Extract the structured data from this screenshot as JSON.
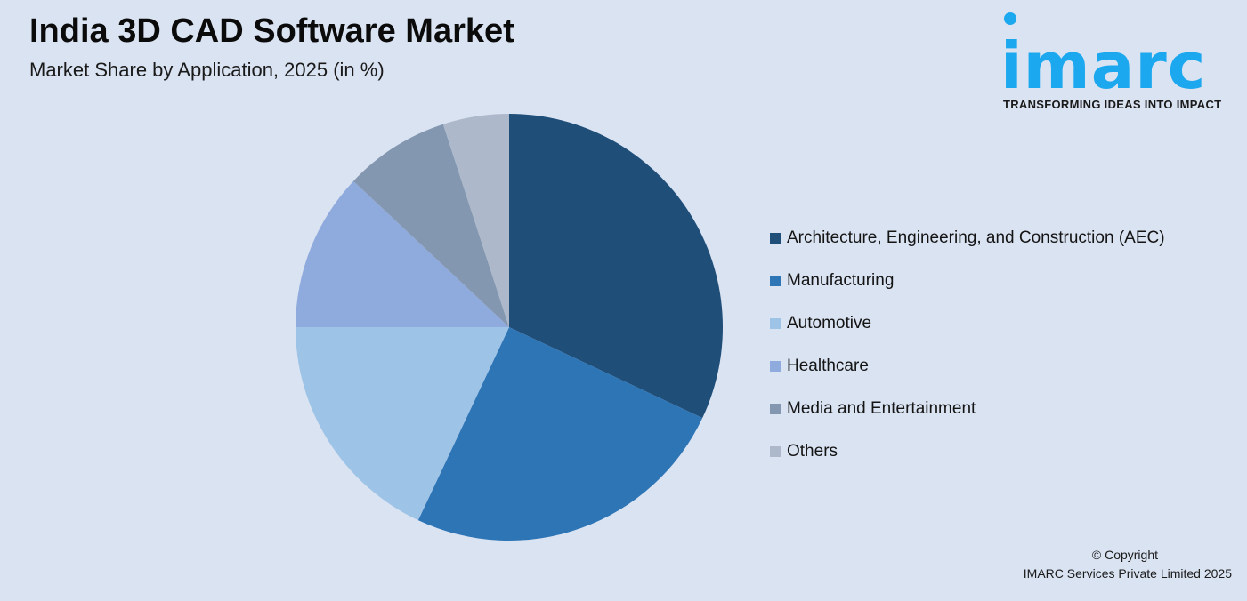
{
  "header": {
    "title": "India 3D CAD Software Market",
    "subtitle": "Market Share by Application, 2025 (in %)"
  },
  "logo": {
    "word": "imarc",
    "tagline": "TRANSFORMING IDEAS INTO IMPACT",
    "color": "#1ba8ef"
  },
  "legend": {
    "items": [
      {
        "label": "Architecture, Engineering, and Construction (AEC)",
        "color": "#1f4e79"
      },
      {
        "label": "Manufacturing",
        "color": "#2e75b6"
      },
      {
        "label": "Automotive",
        "color": "#9dc3e6"
      },
      {
        "label": "Healthcare",
        "color": "#8faadc"
      },
      {
        "label": "Media and Entertainment",
        "color": "#8497b0"
      },
      {
        "label": "Others",
        "color": "#adb9ca"
      }
    ]
  },
  "footer": {
    "copyright_line1": "© Copyright",
    "copyright_line2": "IMARC Services Private Limited 2025"
  },
  "chart_data": {
    "type": "pie",
    "title": "India 3D CAD Software Market",
    "subtitle": "Market Share by Application, 2025 (in %)",
    "categories": [
      "Architecture, Engineering, and Construction (AEC)",
      "Manufacturing",
      "Automotive",
      "Healthcare",
      "Media and Entertainment",
      "Others"
    ],
    "values": [
      32,
      25,
      18,
      12,
      8,
      5
    ],
    "colors": [
      "#1f4e79",
      "#2e75b6",
      "#9dc3e6",
      "#8faadc",
      "#8497b0",
      "#adb9ca"
    ],
    "start_angle": "12 o'clock, clockwise",
    "legend_position": "right",
    "data_labels": false
  }
}
